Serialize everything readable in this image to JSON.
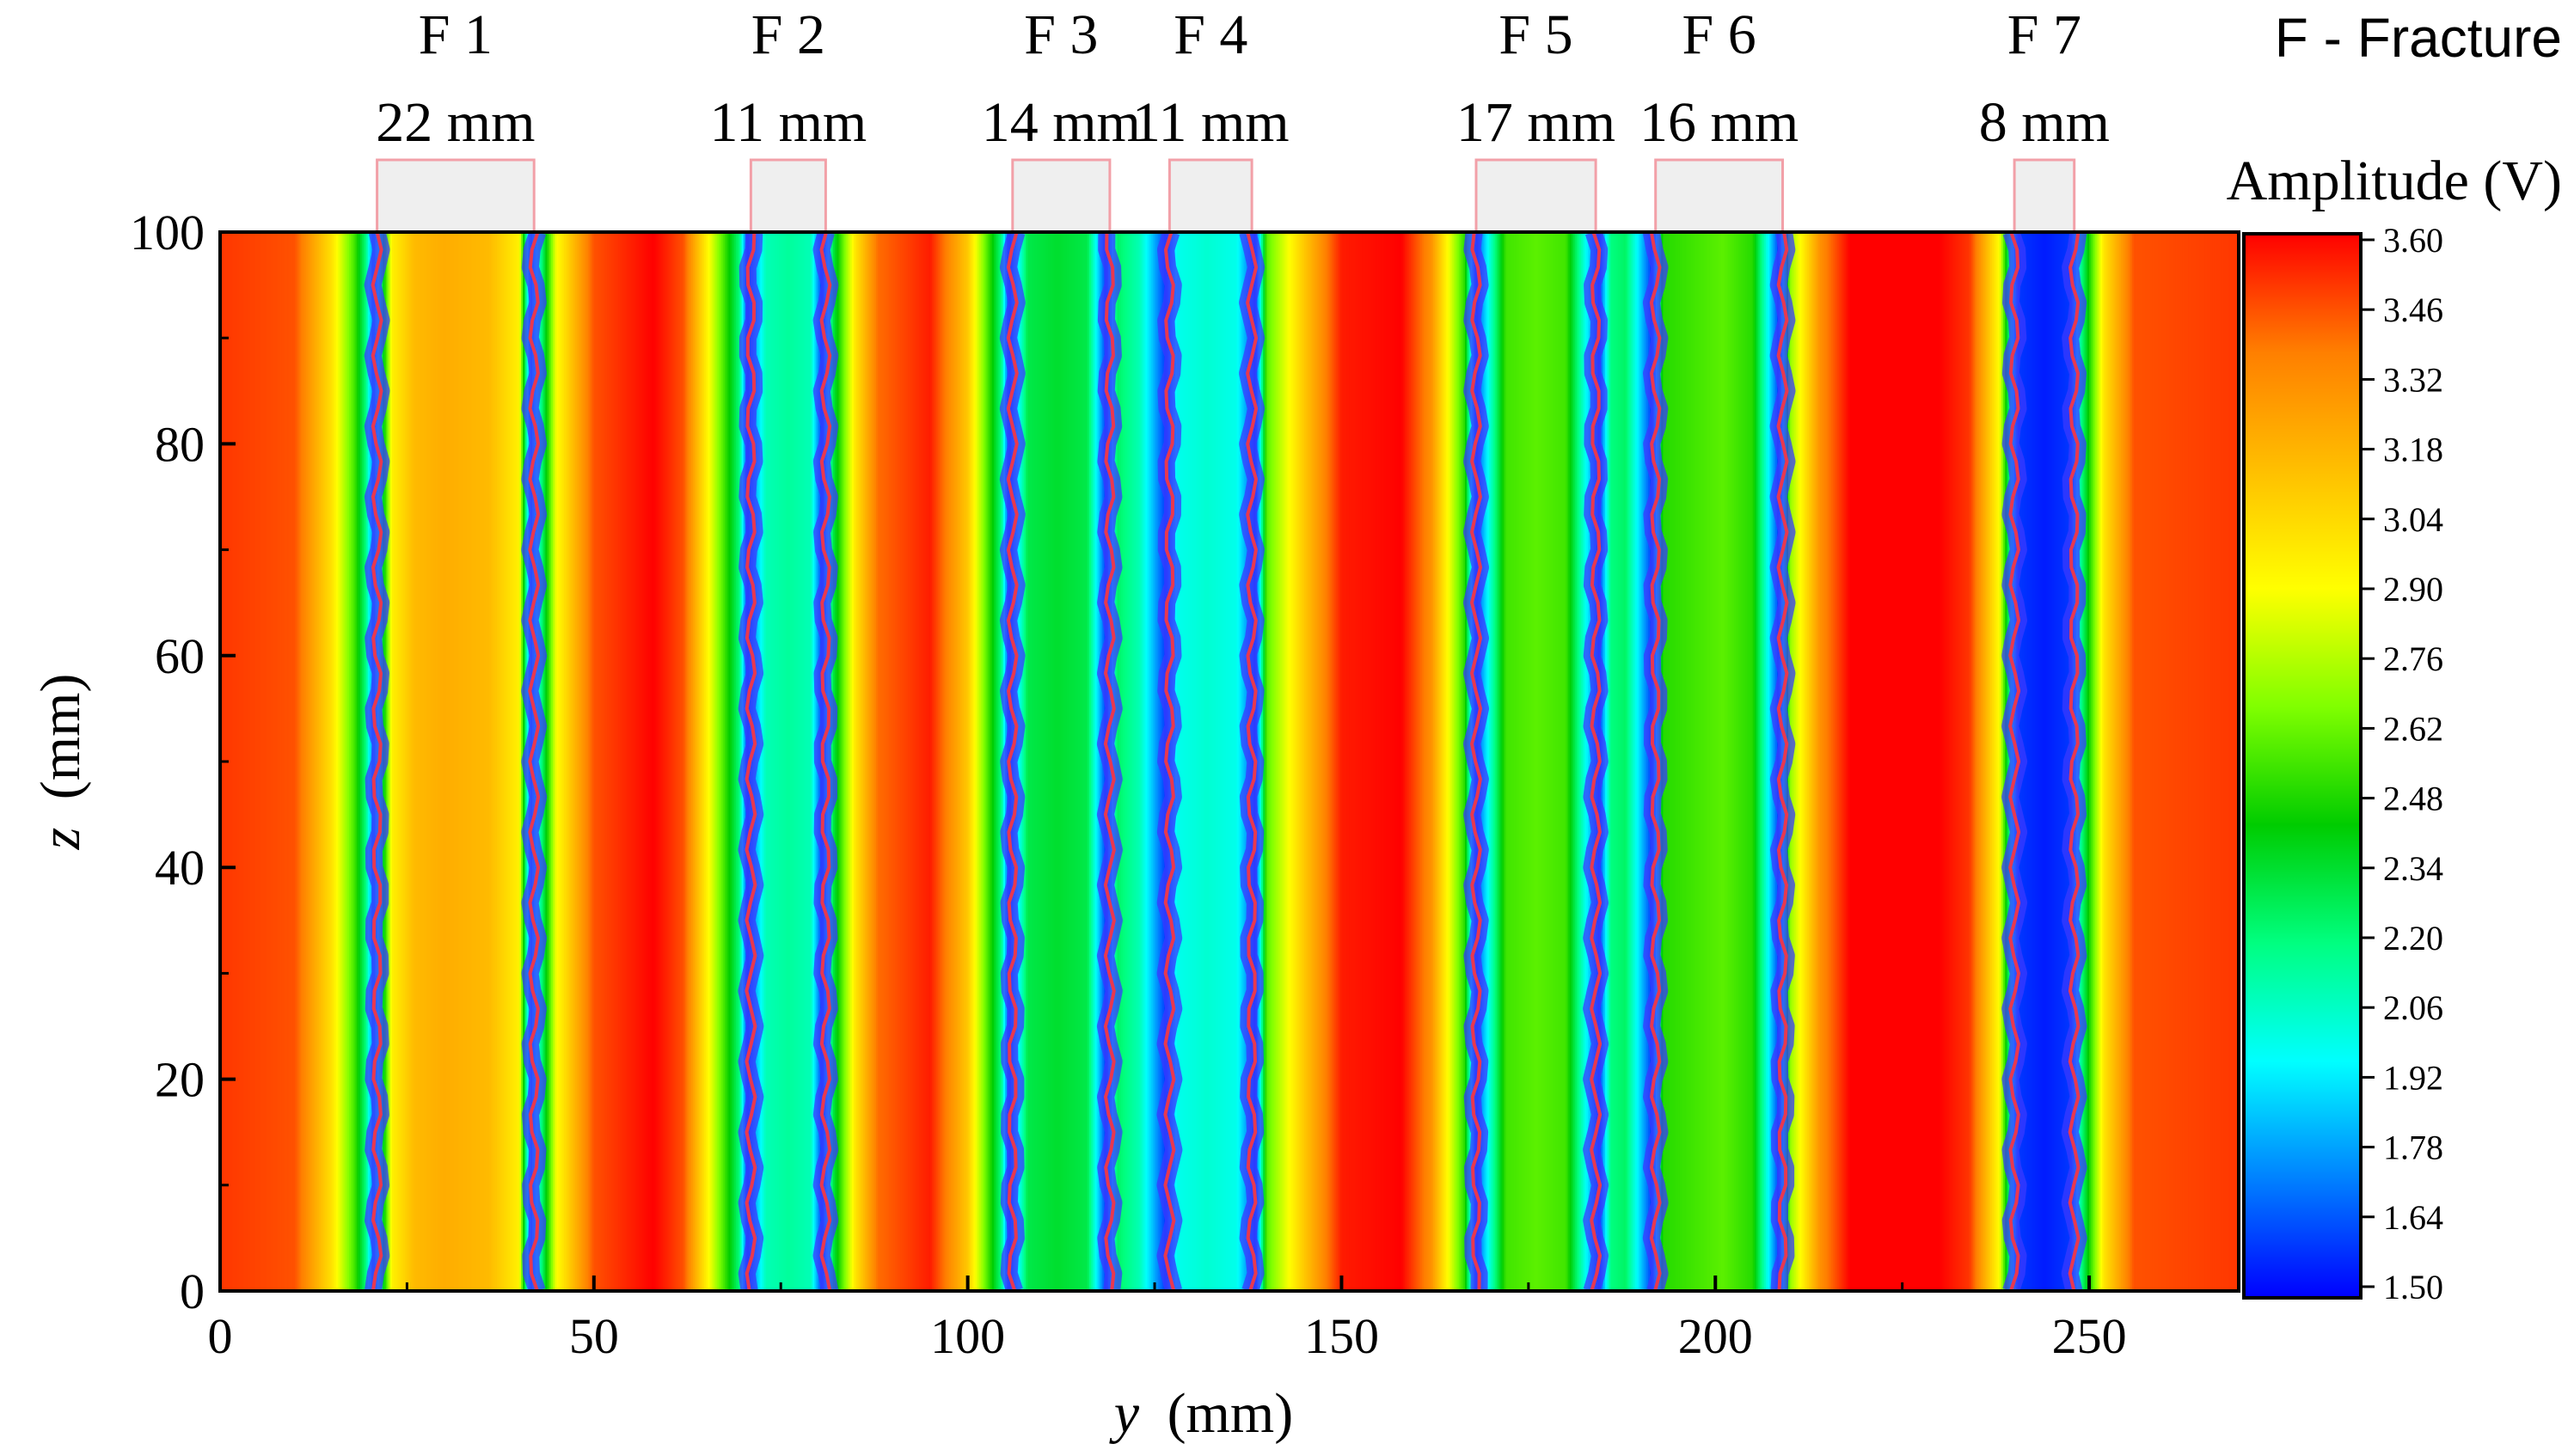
{
  "chart_data": {
    "type": "heatmap",
    "xlabel_var": "y",
    "xlabel_unit": "(mm)",
    "ylabel_var": "z",
    "ylabel_unit": "(mm)",
    "xlim": [
      0,
      270
    ],
    "ylim": [
      0,
      100
    ],
    "x_ticks": [
      "0",
      "50",
      "100",
      "150",
      "200",
      "250"
    ],
    "y_ticks": [
      "0",
      "20",
      "40",
      "60",
      "80",
      "100"
    ],
    "colorbar": {
      "title": "Amplitude (V)",
      "min": 1.5,
      "max": 3.6,
      "ticks": [
        "3.60",
        "3.46",
        "3.32",
        "3.18",
        "3.04",
        "2.90",
        "2.76",
        "2.62",
        "2.48",
        "2.34",
        "2.20",
        "2.06",
        "1.92",
        "1.78",
        "1.64",
        "1.50"
      ],
      "colors": [
        "#0000ff",
        "#0080ff",
        "#00ffff",
        "#00ff80",
        "#00cc00",
        "#80ff00",
        "#ffff00",
        "#ffbf00",
        "#ff7f00",
        "#ff0000"
      ]
    },
    "legend_note": "F - Fracture",
    "fractures": [
      {
        "id": "F 1",
        "width_label": "22 mm",
        "y_start": 21,
        "y_end": 42
      },
      {
        "id": "F 2",
        "width_label": "11 mm",
        "y_start": 71,
        "y_end": 81
      },
      {
        "id": "F 3",
        "width_label": "14 mm",
        "y_start": 106,
        "y_end": 119
      },
      {
        "id": "F 4",
        "width_label": "11 mm",
        "y_start": 127,
        "y_end": 138
      },
      {
        "id": "F 5",
        "width_label": "17 mm",
        "y_start": 168,
        "y_end": 184
      },
      {
        "id": "F 6",
        "width_label": "16 mm",
        "y_start": 192,
        "y_end": 209
      },
      {
        "id": "F 7",
        "width_label": "8 mm",
        "y_start": 240,
        "y_end": 248
      }
    ],
    "amplitude_profile_y": [
      0,
      10,
      15,
      18,
      19.5,
      20.5,
      23,
      26,
      30,
      36,
      40,
      41.5,
      43,
      45,
      50,
      58,
      62,
      66,
      69.5,
      70.5,
      73,
      76,
      79,
      80.5,
      82,
      85,
      88,
      95,
      100,
      104.5,
      105.5,
      108,
      112,
      116,
      118.5,
      120,
      123,
      126.5,
      128,
      132,
      136,
      138.5,
      140,
      145,
      150,
      158,
      162,
      166.5,
      168,
      172,
      176,
      180,
      184.5,
      186,
      188,
      191.5,
      193,
      197,
      201,
      205,
      208.5,
      210,
      214,
      218,
      230,
      234,
      238,
      240.5,
      244,
      247.5,
      249,
      252,
      256,
      270
    ],
    "amplitude_profile_v": [
      3.5,
      3.45,
      3.0,
      2.55,
      2.2,
      1.7,
      2.95,
      3.15,
      3.2,
      3.15,
      2.95,
      1.7,
      2.2,
      2.9,
      3.45,
      3.6,
      3.45,
      2.8,
      2.2,
      1.6,
      2.1,
      2.15,
      2.1,
      1.6,
      2.3,
      3.0,
      3.4,
      3.55,
      3.1,
      2.2,
      1.6,
      2.3,
      2.35,
      2.3,
      1.6,
      2.25,
      2.1,
      1.6,
      2.0,
      2.05,
      2.0,
      1.6,
      2.6,
      3.1,
      3.55,
      3.6,
      3.3,
      2.5,
      1.6,
      2.55,
      2.6,
      2.55,
      1.6,
      2.2,
      2.25,
      1.6,
      2.5,
      2.55,
      2.6,
      2.5,
      1.6,
      2.7,
      3.3,
      3.6,
      3.6,
      3.5,
      2.9,
      1.6,
      1.55,
      1.6,
      2.2,
      3.0,
      3.45,
      3.5
    ]
  }
}
